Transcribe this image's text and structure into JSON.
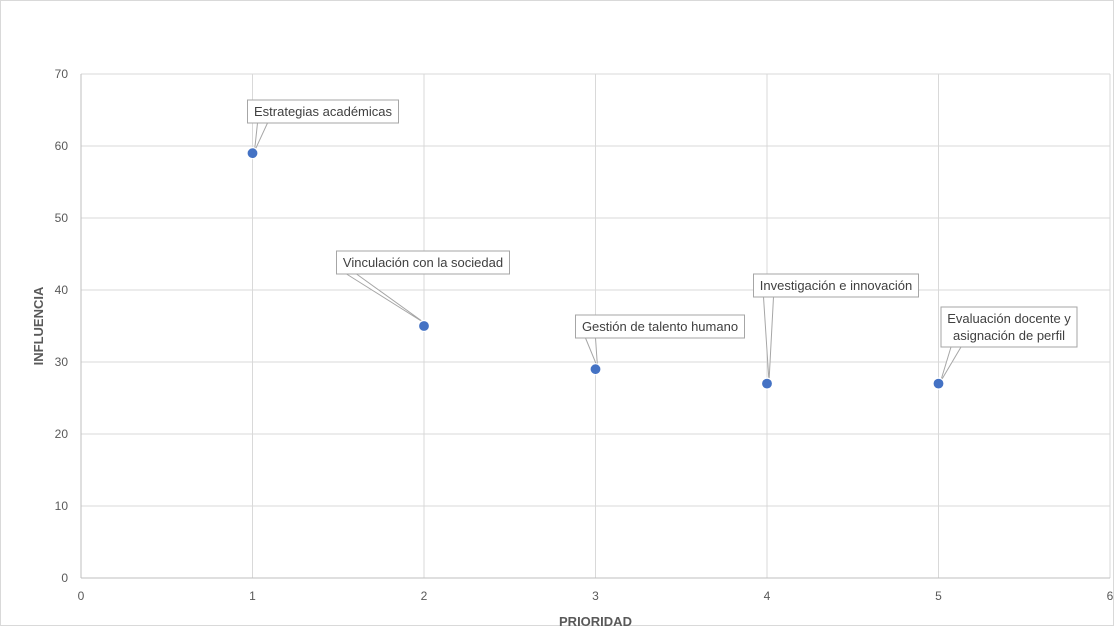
{
  "chart_data": {
    "type": "scatter",
    "title": "",
    "xlabel": "PRIORIDAD",
    "ylabel": "INFLUENCIA",
    "xlim": [
      0,
      6
    ],
    "ylim": [
      0,
      70
    ],
    "xticks": [
      0,
      1,
      2,
      3,
      4,
      5,
      6
    ],
    "yticks": [
      0,
      10,
      20,
      30,
      40,
      50,
      60,
      70
    ],
    "grid": true,
    "legend": "none",
    "marker_color": "#4472c4",
    "points": [
      {
        "x": 1,
        "y": 59,
        "label": [
          "Estrategias académicas"
        ]
      },
      {
        "x": 2,
        "y": 35,
        "label": [
          "Vinculación con la sociedad"
        ]
      },
      {
        "x": 3,
        "y": 29,
        "label": [
          "Gestión de talento humano"
        ]
      },
      {
        "x": 4,
        "y": 27,
        "label": [
          "Investigación e innovación"
        ]
      },
      {
        "x": 5,
        "y": 27,
        "label": [
          "Evaluación docente y",
          "asignación de perfil"
        ]
      }
    ]
  }
}
